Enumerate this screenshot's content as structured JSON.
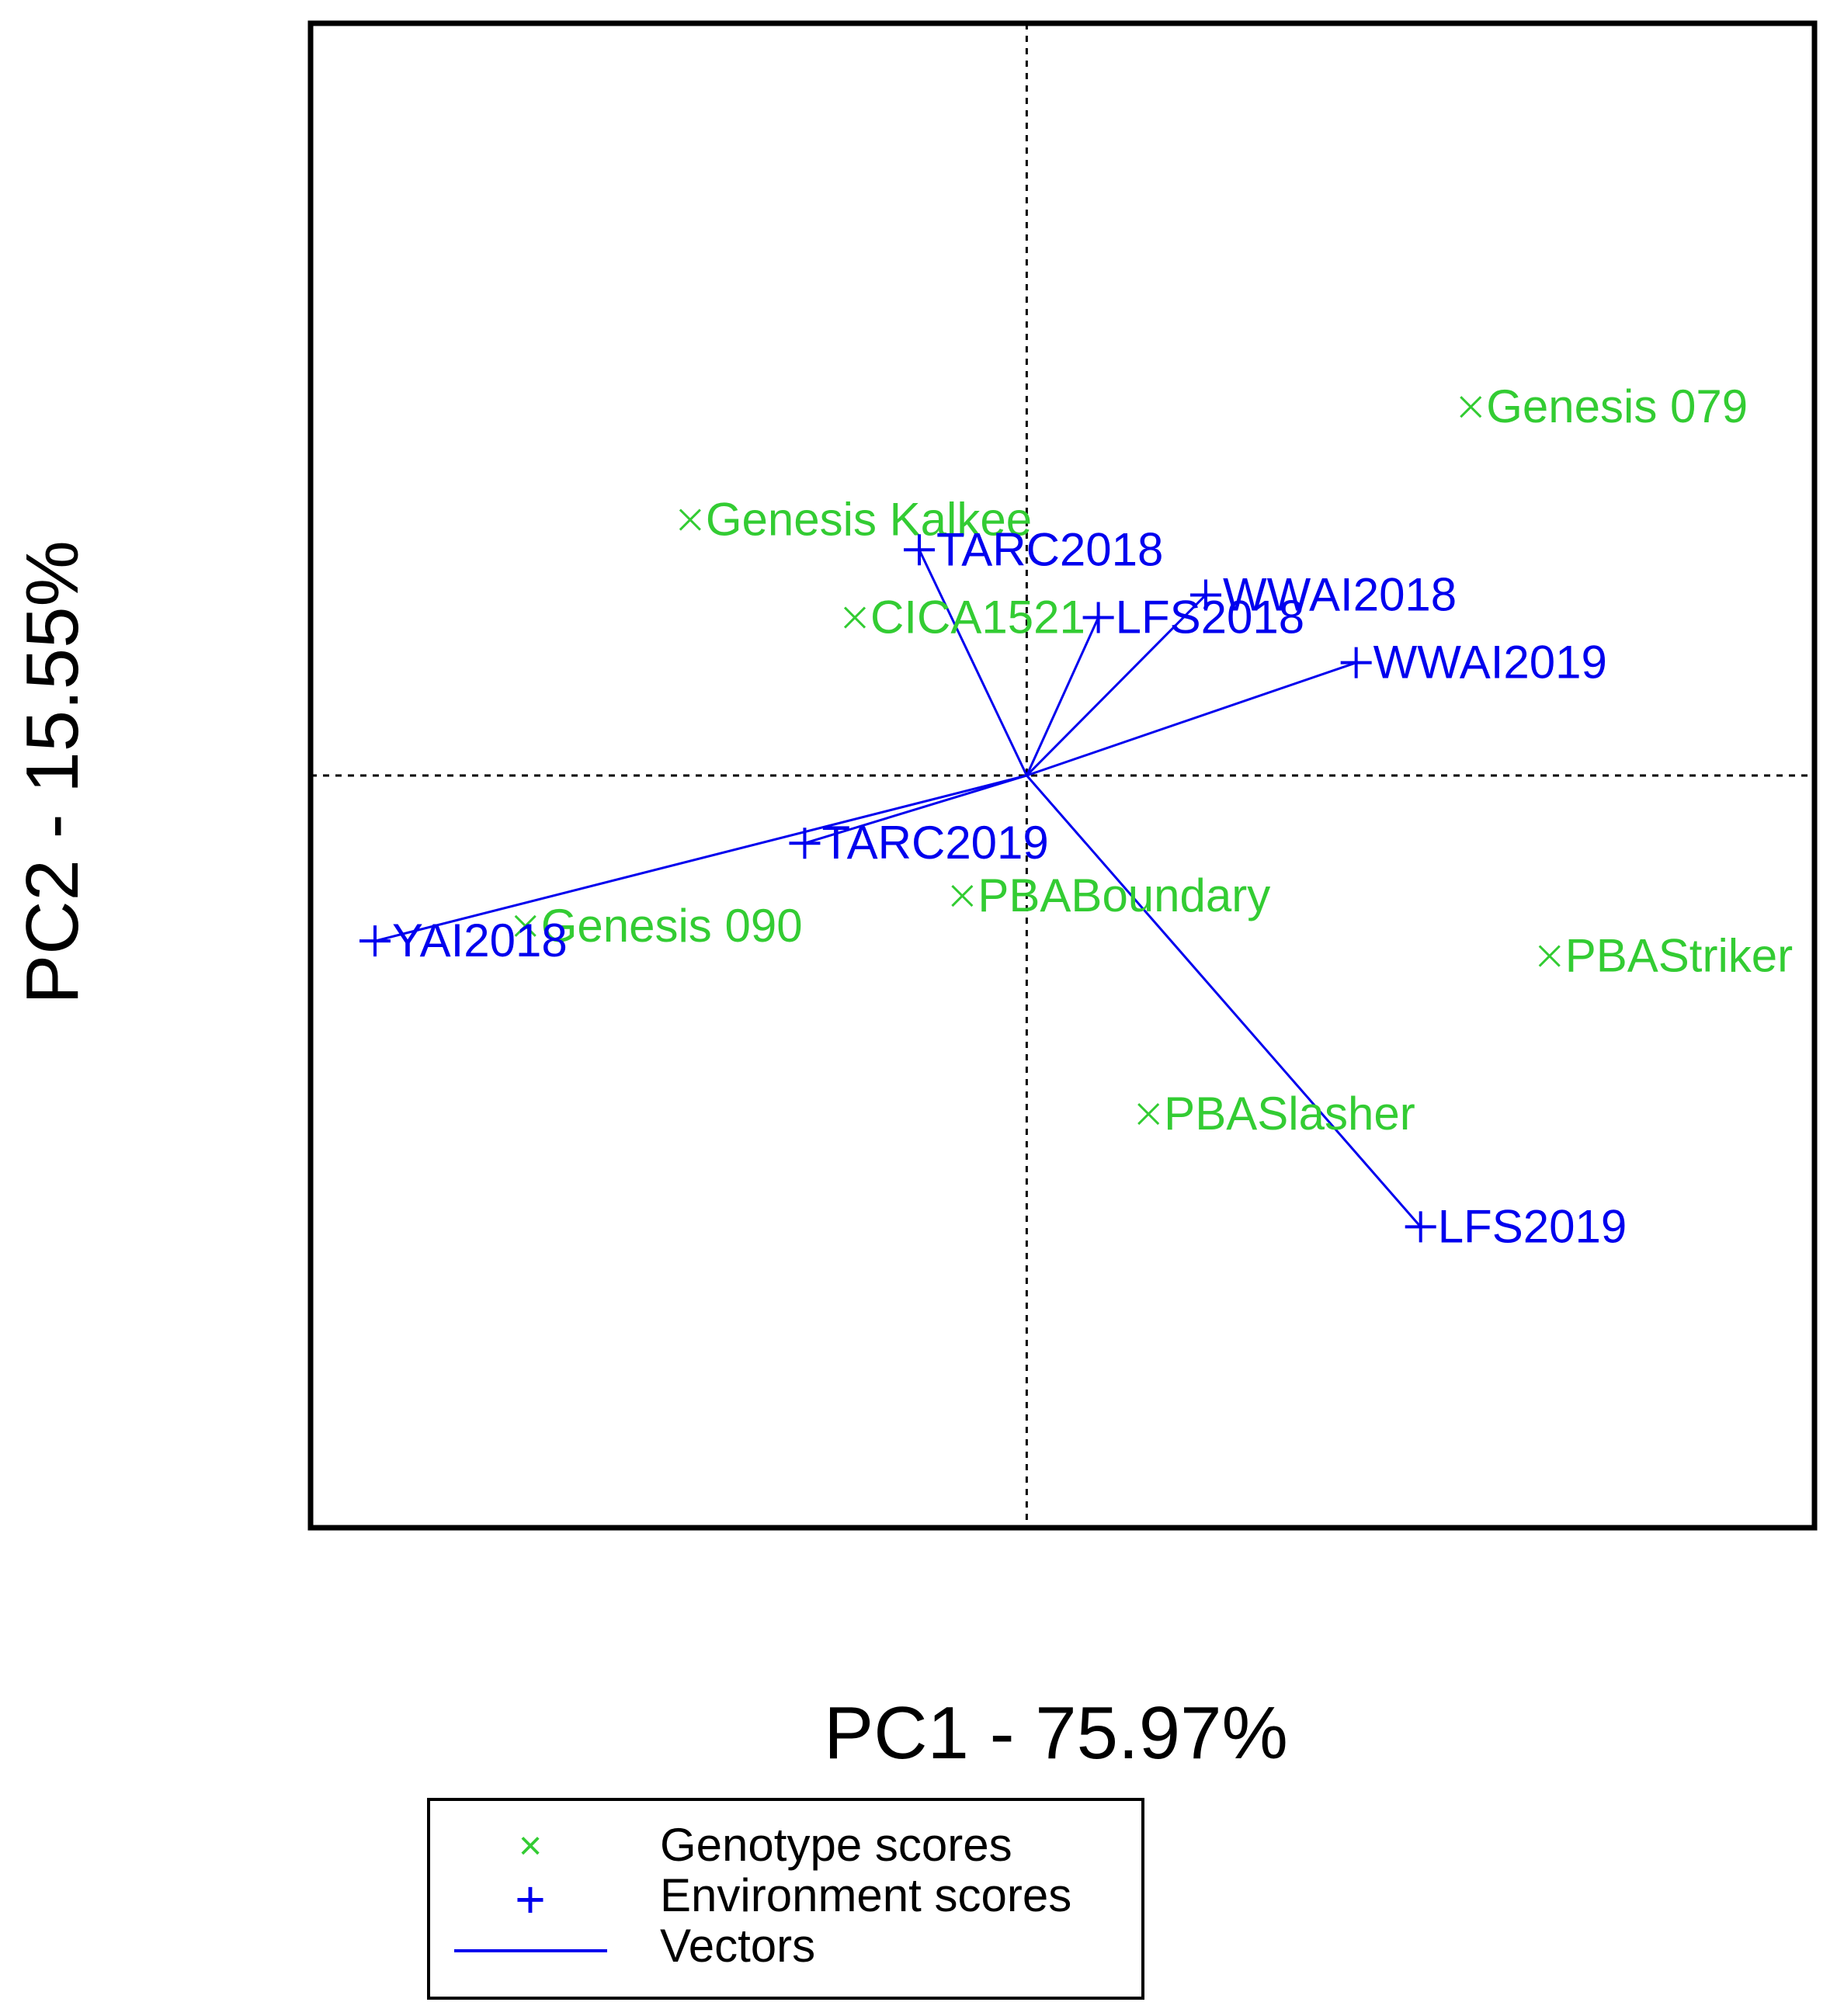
{
  "chart_data": {
    "type": "scatter",
    "subtype": "GGE biplot",
    "xlabel": "PC1 - 75.97%",
    "ylabel": "PC2 - 15.55%",
    "xlim": [
      -1.0,
      1.1
    ],
    "ylim": [
      -1.0,
      1.0
    ],
    "reference_lines": {
      "x": 0,
      "y": 0,
      "style": "dotted"
    },
    "colors": {
      "genotype": "#33cc33",
      "environment": "#0000ee",
      "axis": "#000000",
      "frame": "#000000"
    },
    "series": [
      {
        "name": "Genotype scores",
        "marker": "x",
        "points": [
          {
            "label": "Genesis 079",
            "x": 0.62,
            "y": 0.49
          },
          {
            "label": "Genesis Kalkee",
            "x": -0.47,
            "y": 0.34
          },
          {
            "label": "CICA1521",
            "x": -0.24,
            "y": 0.21
          },
          {
            "label": "Genesis 090",
            "x": -0.7,
            "y": -0.2
          },
          {
            "label": "PBABoundary",
            "x": -0.09,
            "y": -0.16
          },
          {
            "label": "PBAStriker",
            "x": 0.73,
            "y": -0.24
          },
          {
            "label": "PBASlasher",
            "x": 0.17,
            "y": -0.45
          }
        ]
      },
      {
        "name": "Environment scores",
        "marker": "+",
        "points": [
          {
            "label": "TARC2018",
            "x": -0.15,
            "y": 0.3
          },
          {
            "label": "LFS2018",
            "x": 0.1,
            "y": 0.21
          },
          {
            "label": "WWAI2018",
            "x": 0.25,
            "y": 0.24
          },
          {
            "label": "WWAI2019",
            "x": 0.46,
            "y": 0.15
          },
          {
            "label": "TARC2019",
            "x": -0.31,
            "y": -0.09
          },
          {
            "label": "YAI2018",
            "x": -0.91,
            "y": -0.22
          },
          {
            "label": "LFS2019",
            "x": 0.55,
            "y": -0.6
          }
        ]
      }
    ],
    "vectors": {
      "name": "Vectors",
      "from": [
        0,
        0
      ],
      "to": "Environment scores"
    },
    "legend": {
      "placement": "bottom-center",
      "entries": [
        {
          "label": "Genotype scores",
          "symbol": "×"
        },
        {
          "label": "Environment scores",
          "symbol": "+"
        },
        {
          "label": "Vectors",
          "symbol": "line"
        }
      ]
    }
  }
}
